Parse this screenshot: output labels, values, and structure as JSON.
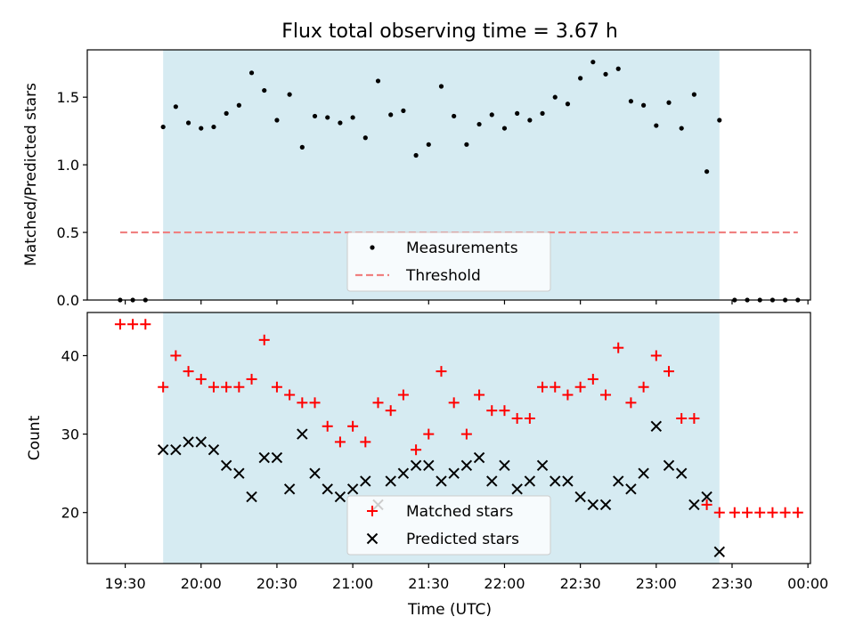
{
  "chart_data": [
    {
      "type": "scatter",
      "title": "Flux total observing time = 3.67 h",
      "ylabel": "Matched/Predicted stars",
      "xlabel": "",
      "ylim": [
        0,
        1.85
      ],
      "yticks": [
        0.0,
        0.5,
        1.0,
        1.5
      ],
      "ytick_labels": [
        "0.0",
        "0.5",
        "1.0",
        "1.5"
      ],
      "observing_window": [
        "19:45",
        "23:25"
      ],
      "threshold": 0.5,
      "threshold_range": [
        "19:28",
        "23:56"
      ],
      "legend_loc": "lower center",
      "legend": [
        {
          "label": "Measurements",
          "marker": "dot",
          "color": "#000000"
        },
        {
          "label": "Threshold",
          "marker": "dashed-line",
          "color": "#f08080"
        }
      ],
      "series": [
        {
          "name": "Measurements",
          "color": "#000000",
          "points": [
            [
              "19:28",
              0.0
            ],
            [
              "19:33",
              0.0
            ],
            [
              "19:38",
              0.0
            ],
            [
              "19:45",
              1.28
            ],
            [
              "19:50",
              1.43
            ],
            [
              "19:55",
              1.31
            ],
            [
              "20:00",
              1.27
            ],
            [
              "20:05",
              1.28
            ],
            [
              "20:10",
              1.38
            ],
            [
              "20:15",
              1.44
            ],
            [
              "20:20",
              1.68
            ],
            [
              "20:25",
              1.55
            ],
            [
              "20:30",
              1.33
            ],
            [
              "20:35",
              1.52
            ],
            [
              "20:40",
              1.13
            ],
            [
              "20:45",
              1.36
            ],
            [
              "20:50",
              1.35
            ],
            [
              "20:55",
              1.31
            ],
            [
              "21:00",
              1.35
            ],
            [
              "21:05",
              1.2
            ],
            [
              "21:10",
              1.62
            ],
            [
              "21:15",
              1.37
            ],
            [
              "21:20",
              1.4
            ],
            [
              "21:25",
              1.07
            ],
            [
              "21:30",
              1.15
            ],
            [
              "21:35",
              1.58
            ],
            [
              "21:40",
              1.36
            ],
            [
              "21:45",
              1.15
            ],
            [
              "21:50",
              1.3
            ],
            [
              "21:55",
              1.37
            ],
            [
              "22:00",
              1.27
            ],
            [
              "22:05",
              1.38
            ],
            [
              "22:10",
              1.33
            ],
            [
              "22:15",
              1.38
            ],
            [
              "22:20",
              1.5
            ],
            [
              "22:25",
              1.45
            ],
            [
              "22:30",
              1.64
            ],
            [
              "22:35",
              1.76
            ],
            [
              "22:40",
              1.67
            ],
            [
              "22:45",
              1.71
            ],
            [
              "22:50",
              1.47
            ],
            [
              "22:55",
              1.44
            ],
            [
              "23:00",
              1.29
            ],
            [
              "23:05",
              1.46
            ],
            [
              "23:10",
              1.27
            ],
            [
              "23:15",
              1.52
            ],
            [
              "23:20",
              0.95
            ],
            [
              "23:25",
              1.33
            ],
            [
              "23:31",
              0.0
            ],
            [
              "23:36",
              0.0
            ],
            [
              "23:41",
              0.0
            ],
            [
              "23:46",
              0.0
            ],
            [
              "23:51",
              0.0
            ],
            [
              "23:56",
              0.0
            ]
          ]
        }
      ]
    },
    {
      "type": "scatter",
      "title": "",
      "ylabel": "Count",
      "xlabel": "Time (UTC)",
      "ylim": [
        13.5,
        45.5
      ],
      "yticks": [
        20,
        30,
        40
      ],
      "ytick_labels": [
        "20",
        "30",
        "40"
      ],
      "xticks": [
        "19:30",
        "20:00",
        "20:30",
        "21:00",
        "21:30",
        "22:00",
        "22:30",
        "23:00",
        "23:30",
        "00:00"
      ],
      "observing_window": [
        "19:45",
        "23:25"
      ],
      "legend_loc": "lower center",
      "legend": [
        {
          "label": "Matched stars",
          "marker": "plus",
          "color": "#ff0000"
        },
        {
          "label": "Predicted stars",
          "marker": "x",
          "color": "#000000"
        }
      ],
      "series": [
        {
          "name": "Matched stars",
          "color": "#ff0000",
          "marker": "plus",
          "points": [
            [
              "19:28",
              44
            ],
            [
              "19:33",
              44
            ],
            [
              "19:38",
              44
            ],
            [
              "19:45",
              36
            ],
            [
              "19:50",
              40
            ],
            [
              "19:55",
              38
            ],
            [
              "20:00",
              37
            ],
            [
              "20:05",
              36
            ],
            [
              "20:10",
              36
            ],
            [
              "20:15",
              36
            ],
            [
              "20:20",
              37
            ],
            [
              "20:25",
              42
            ],
            [
              "20:30",
              36
            ],
            [
              "20:35",
              35
            ],
            [
              "20:40",
              34
            ],
            [
              "20:45",
              34
            ],
            [
              "20:50",
              31
            ],
            [
              "20:55",
              29
            ],
            [
              "21:00",
              31
            ],
            [
              "21:05",
              29
            ],
            [
              "21:10",
              34
            ],
            [
              "21:15",
              33
            ],
            [
              "21:20",
              35
            ],
            [
              "21:25",
              28
            ],
            [
              "21:30",
              30
            ],
            [
              "21:35",
              38
            ],
            [
              "21:40",
              34
            ],
            [
              "21:45",
              30
            ],
            [
              "21:50",
              35
            ],
            [
              "21:55",
              33
            ],
            [
              "22:00",
              33
            ],
            [
              "22:05",
              32
            ],
            [
              "22:10",
              32
            ],
            [
              "22:15",
              36
            ],
            [
              "22:20",
              36
            ],
            [
              "22:25",
              35
            ],
            [
              "22:30",
              36
            ],
            [
              "22:35",
              37
            ],
            [
              "22:40",
              35
            ],
            [
              "22:45",
              41
            ],
            [
              "22:50",
              34
            ],
            [
              "22:55",
              36
            ],
            [
              "23:00",
              40
            ],
            [
              "23:05",
              38
            ],
            [
              "23:10",
              32
            ],
            [
              "23:15",
              32
            ],
            [
              "23:20",
              21
            ],
            [
              "23:25",
              20
            ],
            [
              "23:31",
              20
            ],
            [
              "23:36",
              20
            ],
            [
              "23:41",
              20
            ],
            [
              "23:46",
              20
            ],
            [
              "23:51",
              20
            ],
            [
              "23:56",
              20
            ]
          ]
        },
        {
          "name": "Predicted stars",
          "color": "#000000",
          "marker": "x",
          "points": [
            [
              "19:45",
              28
            ],
            [
              "19:50",
              28
            ],
            [
              "19:55",
              29
            ],
            [
              "20:00",
              29
            ],
            [
              "20:05",
              28
            ],
            [
              "20:10",
              26
            ],
            [
              "20:15",
              25
            ],
            [
              "20:20",
              22
            ],
            [
              "20:25",
              27
            ],
            [
              "20:30",
              27
            ],
            [
              "20:35",
              23
            ],
            [
              "20:40",
              30
            ],
            [
              "20:45",
              25
            ],
            [
              "20:50",
              23
            ],
            [
              "20:55",
              22
            ],
            [
              "21:00",
              23
            ],
            [
              "21:05",
              24
            ],
            [
              "21:10",
              21
            ],
            [
              "21:15",
              24
            ],
            [
              "21:20",
              25
            ],
            [
              "21:25",
              26
            ],
            [
              "21:30",
              26
            ],
            [
              "21:35",
              24
            ],
            [
              "21:40",
              25
            ],
            [
              "21:45",
              26
            ],
            [
              "21:50",
              27
            ],
            [
              "21:55",
              24
            ],
            [
              "22:00",
              26
            ],
            [
              "22:05",
              23
            ],
            [
              "22:10",
              24
            ],
            [
              "22:15",
              26
            ],
            [
              "22:20",
              24
            ],
            [
              "22:25",
              24
            ],
            [
              "22:30",
              22
            ],
            [
              "22:35",
              21
            ],
            [
              "22:40",
              21
            ],
            [
              "22:45",
              24
            ],
            [
              "22:50",
              23
            ],
            [
              "22:55",
              25
            ],
            [
              "23:00",
              31
            ],
            [
              "23:05",
              26
            ],
            [
              "23:10",
              25
            ],
            [
              "23:15",
              21
            ],
            [
              "23:20",
              22
            ],
            [
              "23:25",
              15
            ]
          ]
        }
      ]
    }
  ]
}
